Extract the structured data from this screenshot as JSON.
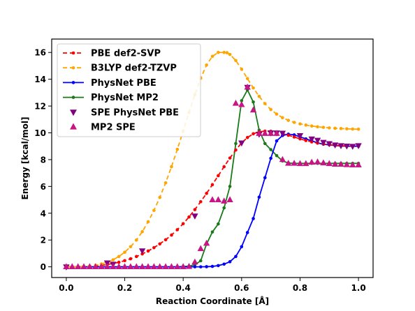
{
  "chart_data": {
    "type": "line",
    "title": "",
    "xlabel": "Reaction Coordinate [Å]",
    "ylabel": "Energy [kcal/mol]",
    "xlim": [
      -0.05,
      1.05
    ],
    "ylim": [
      -0.8,
      17.0
    ],
    "xticks": [
      "0.0",
      "0.2",
      "0.4",
      "0.6",
      "0.8",
      "1.0"
    ],
    "yticks": [
      "0",
      "2",
      "4",
      "6",
      "8",
      "10",
      "12",
      "14",
      "16"
    ],
    "grid": false,
    "legend_position": "top-left",
    "series": [
      {
        "name": "PBE def2-SVP",
        "color": "#ff0000",
        "style": "dashed-circle",
        "x": [
          0.0,
          0.02,
          0.04,
          0.06,
          0.08,
          0.1,
          0.12,
          0.14,
          0.16,
          0.18,
          0.2,
          0.22,
          0.24,
          0.26,
          0.28,
          0.3,
          0.32,
          0.34,
          0.36,
          0.38,
          0.4,
          0.42,
          0.44,
          0.46,
          0.48,
          0.5,
          0.52,
          0.54,
          0.56,
          0.58,
          0.6,
          0.62,
          0.64,
          0.66,
          0.68,
          0.7,
          0.72,
          0.74,
          0.76,
          0.78,
          0.8,
          0.82,
          0.84,
          0.86,
          0.88,
          0.9,
          0.92,
          0.94,
          0.96,
          0.98,
          1.0
        ],
        "y": [
          0.0,
          0.0,
          0.01,
          0.02,
          0.04,
          0.07,
          0.11,
          0.17,
          0.25,
          0.34,
          0.46,
          0.6,
          0.77,
          0.96,
          1.18,
          1.43,
          1.71,
          2.02,
          2.37,
          2.77,
          3.22,
          3.72,
          4.27,
          4.86,
          5.48,
          6.13,
          6.8,
          7.47,
          8.12,
          8.72,
          9.25,
          9.65,
          9.93,
          10.08,
          10.13,
          10.12,
          10.05,
          9.95,
          9.82,
          9.69,
          9.55,
          9.43,
          9.32,
          9.23,
          9.16,
          9.11,
          9.07,
          9.04,
          9.02,
          9.0,
          9.0
        ]
      },
      {
        "name": "B3LYP def2-TZVP",
        "color": "#ffa500",
        "style": "dashed-circle",
        "x": [
          0.0,
          0.02,
          0.04,
          0.06,
          0.08,
          0.1,
          0.12,
          0.14,
          0.16,
          0.18,
          0.2,
          0.22,
          0.24,
          0.26,
          0.28,
          0.3,
          0.32,
          0.34,
          0.36,
          0.38,
          0.4,
          0.42,
          0.44,
          0.46,
          0.48,
          0.5,
          0.52,
          0.54,
          0.55,
          0.56,
          0.58,
          0.6,
          0.62,
          0.64,
          0.66,
          0.68,
          0.7,
          0.72,
          0.74,
          0.76,
          0.78,
          0.8,
          0.82,
          0.84,
          0.86,
          0.88,
          0.9,
          0.92,
          0.94,
          0.96,
          0.98,
          1.0
        ],
        "y": [
          0.0,
          0.0,
          0.01,
          0.03,
          0.06,
          0.12,
          0.21,
          0.34,
          0.52,
          0.77,
          1.09,
          1.5,
          2.0,
          2.62,
          3.36,
          4.21,
          5.18,
          6.27,
          7.47,
          8.77,
          10.13,
          11.52,
          12.85,
          14.07,
          15.06,
          15.71,
          16.0,
          16.0,
          15.98,
          15.85,
          15.4,
          14.75,
          14.05,
          13.35,
          12.72,
          12.18,
          11.74,
          11.4,
          11.13,
          10.93,
          10.78,
          10.67,
          10.58,
          10.51,
          10.45,
          10.41,
          10.37,
          10.34,
          10.32,
          10.3,
          10.28,
          10.27
        ]
      },
      {
        "name": "PhysNet PBE",
        "color": "#0000ff",
        "style": "solid-circle",
        "x": [
          0.0,
          0.02,
          0.04,
          0.06,
          0.08,
          0.1,
          0.12,
          0.14,
          0.16,
          0.18,
          0.2,
          0.22,
          0.24,
          0.26,
          0.28,
          0.3,
          0.32,
          0.34,
          0.36,
          0.38,
          0.4,
          0.42,
          0.44,
          0.46,
          0.48,
          0.5,
          0.52,
          0.54,
          0.56,
          0.58,
          0.6,
          0.62,
          0.64,
          0.66,
          0.68,
          0.7,
          0.72,
          0.74,
          0.76,
          0.78,
          0.8,
          0.82,
          0.84,
          0.86,
          0.88,
          0.9,
          0.92,
          0.94,
          0.96,
          0.98,
          1.0
        ],
        "y": [
          0.0,
          0.0,
          0.0,
          0.0,
          0.0,
          0.0,
          0.0,
          0.0,
          0.0,
          0.0,
          0.0,
          0.0,
          0.0,
          0.0,
          0.0,
          0.0,
          0.0,
          0.0,
          0.0,
          0.0,
          0.0,
          0.0,
          0.0,
          0.0,
          0.01,
          0.03,
          0.09,
          0.2,
          0.38,
          0.77,
          1.5,
          2.56,
          3.6,
          5.2,
          6.65,
          8.1,
          9.4,
          9.8,
          9.9,
          9.85,
          9.7,
          9.55,
          9.4,
          9.25,
          9.15,
          9.1,
          9.05,
          9.02,
          9.0,
          9.0,
          9.0
        ]
      },
      {
        "name": "PhysNet MP2",
        "color": "#1a7a1a",
        "style": "solid-circle",
        "x": [
          0.0,
          0.02,
          0.04,
          0.06,
          0.08,
          0.1,
          0.12,
          0.14,
          0.16,
          0.18,
          0.2,
          0.22,
          0.24,
          0.26,
          0.28,
          0.3,
          0.32,
          0.34,
          0.36,
          0.38,
          0.4,
          0.42,
          0.44,
          0.46,
          0.48,
          0.5,
          0.52,
          0.54,
          0.56,
          0.58,
          0.6,
          0.62,
          0.64,
          0.66,
          0.68,
          0.7,
          0.72,
          0.74,
          0.76,
          0.78,
          0.8,
          0.82,
          0.84,
          0.86,
          0.88,
          0.9,
          0.92,
          0.94,
          0.96,
          0.98,
          1.0
        ],
        "y": [
          0.0,
          0.0,
          0.0,
          0.0,
          0.0,
          0.0,
          0.0,
          0.0,
          0.0,
          0.0,
          0.0,
          0.0,
          0.0,
          0.0,
          0.0,
          0.0,
          0.0,
          0.0,
          0.0,
          0.0,
          0.02,
          0.05,
          0.15,
          0.45,
          1.7,
          2.6,
          3.2,
          4.4,
          6.0,
          9.2,
          12.4,
          13.2,
          12.3,
          10.2,
          9.2,
          8.75,
          8.3,
          7.9,
          7.75,
          7.72,
          7.72,
          7.72,
          7.72,
          7.72,
          7.72,
          7.72,
          7.72,
          7.72,
          7.72,
          7.72,
          7.72
        ]
      },
      {
        "name": "SPE PhysNet PBE",
        "color": "#800080",
        "style": "marker-triangle-down",
        "x": [
          0.0,
          0.14,
          0.16,
          0.26,
          0.44,
          0.6,
          0.62,
          0.66,
          0.7,
          0.72,
          0.74,
          0.8,
          0.84,
          0.86,
          0.88,
          0.9,
          0.92,
          0.94,
          0.96,
          0.98,
          1.0
        ],
        "y": [
          0.0,
          0.3,
          0.2,
          1.2,
          3.8,
          9.25,
          13.4,
          9.9,
          10.0,
          10.0,
          9.98,
          9.8,
          9.55,
          9.45,
          9.3,
          9.2,
          9.1,
          9.05,
          9.02,
          9.0,
          9.05
        ]
      },
      {
        "name": "MP2 SPE",
        "color": "#c71585",
        "style": "marker-triangle-up",
        "x": [
          0.0,
          0.02,
          0.04,
          0.06,
          0.08,
          0.1,
          0.12,
          0.14,
          0.16,
          0.18,
          0.2,
          0.22,
          0.24,
          0.26,
          0.28,
          0.3,
          0.32,
          0.34,
          0.36,
          0.38,
          0.4,
          0.42,
          0.44,
          0.46,
          0.48,
          0.5,
          0.52,
          0.54,
          0.56,
          0.58,
          0.6,
          0.62,
          0.64,
          0.66,
          0.68,
          0.7,
          0.72,
          0.74,
          0.76,
          0.78,
          0.8,
          0.82,
          0.84,
          0.86,
          0.88,
          0.9,
          0.92,
          0.94,
          0.96,
          0.98,
          1.0
        ],
        "y": [
          0.0,
          0.0,
          0.0,
          0.0,
          0.0,
          0.0,
          0.0,
          0.0,
          0.0,
          0.0,
          0.0,
          0.0,
          0.0,
          0.0,
          0.0,
          0.0,
          0.0,
          0.0,
          0.0,
          0.0,
          0.0,
          0.02,
          0.35,
          1.35,
          1.75,
          5.0,
          5.0,
          4.9,
          5.0,
          12.2,
          12.1,
          13.4,
          11.7,
          9.95,
          9.95,
          9.95,
          9.95,
          8.0,
          7.72,
          7.72,
          7.7,
          7.7,
          7.8,
          7.82,
          7.75,
          7.7,
          7.65,
          7.65,
          7.62,
          7.6,
          7.6
        ]
      }
    ]
  }
}
